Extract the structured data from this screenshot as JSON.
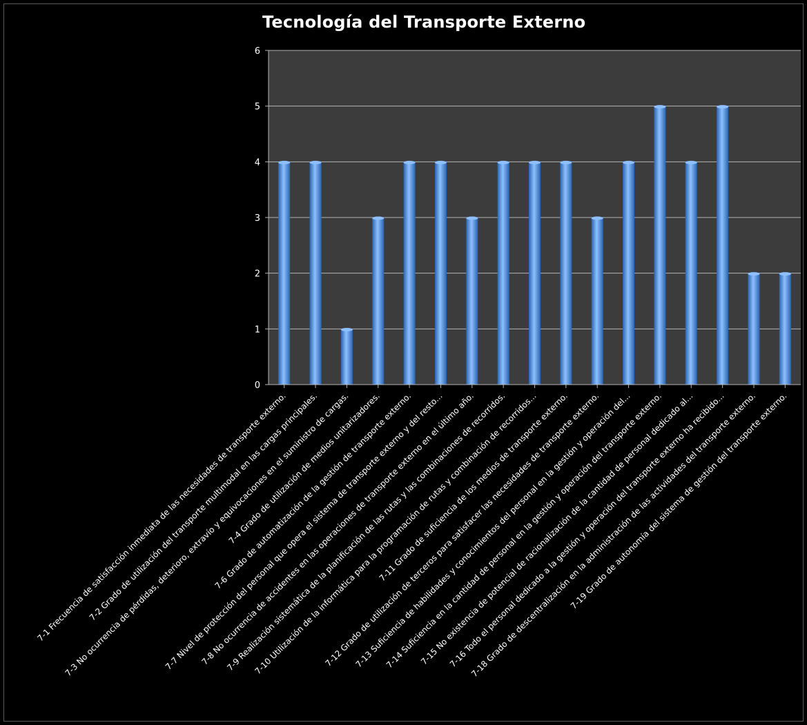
{
  "chart_data": {
    "type": "bar",
    "title": "Tecnología del Transporte Externo",
    "xlabel": "",
    "ylabel": "",
    "ylim": [
      0,
      6
    ],
    "yticks": [
      0,
      1,
      2,
      3,
      4,
      5,
      6
    ],
    "grid": true,
    "legend": "none",
    "colors": {
      "bar": "#4a8fd8",
      "bar_dark": "#2a64b0",
      "bar_light": "#8ec0ff",
      "plot_background": "#3c3c3c",
      "gridline": "#b5b5b5",
      "text": "#ffffff"
    },
    "categories": [
      "7-1 Frecuencia de satisfacción inmediata de las necesidades de transporte externo.",
      "7-2 Grado de utilización del transporte multimodal en las cargas principales.",
      "7-3 No ocurrencia de pérdidas, deterioro, extravío y equivocaciones en el suministro de cargas.",
      "7-4 Grado de utilización de medios unitarizadores.",
      "7-6 Grado de automatización de la gestión de transporte externo.",
      "7-7 Nivel de protección del personal que opera el sistema de transporte externo y del resto...",
      "7-8 No ocurrencia de accidentes en las operaciones de transporte externo en el último año.",
      "7-9 Realización sistemática de la planificación de las rutas y las combinaciones de recorridos.",
      "7-10 Utilización de la informática para la programación de rutas y combinación de recorridos...",
      "7-11 Grado de suficiencia de los medios de transporte externo.",
      "7-12 Grado de utilización de terceros para satisfacer las necesidades de transporte externo.",
      "7-13 Suficiencia de habilidades y conocimientos del personal en la gestión y operación del...",
      "7-14 Suficiencia en la cantidad de personal en la gestión y operación del transporte externo.",
      "7-15 No existencia de potencial de racionalización de la cantidad de personal dedicado al...",
      "7-16 Todo el personal dedicado a la gestión y operación del transporte externo ha recibido...",
      "7-18 Grado de descentralización en la administración de las actividades del transporte externo.",
      "7-19 Grado de autonomía del sistema de gestión del transporte externo."
    ],
    "values": [
      4,
      4,
      1,
      3,
      4,
      4,
      3,
      4,
      4,
      4,
      3,
      4,
      5,
      4,
      5,
      2,
      2
    ]
  }
}
